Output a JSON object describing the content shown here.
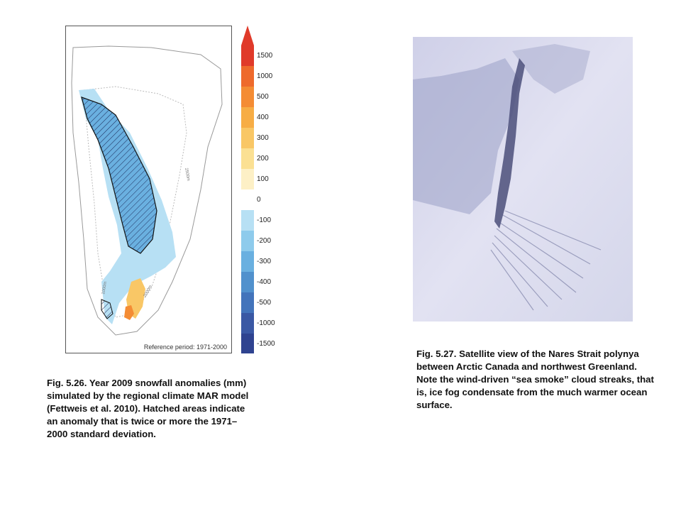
{
  "figure_526": {
    "caption": "Fig. 5.26. Year 2009 snowfall anomalies (mm) simulated by the regional climate MAR model (Fettweis et al. 2010). Hatched areas indicate an anomaly that is twice or more the 1971–2000 standard deviation.",
    "reference_label": "Reference period: 1971-2000",
    "contour_label_a": "2500m",
    "contour_label_b": "2000m",
    "contour_label_c": "1000m",
    "colorbar_ticks": [
      "1500",
      "1000",
      "500",
      "400",
      "300",
      "200",
      "100",
      "0",
      "-100",
      "-200",
      "-300",
      "-400",
      "-500",
      "-1000",
      "-1500"
    ],
    "colors": {
      "positive": [
        "#e03a2a",
        "#ee6a2c",
        "#f48c34",
        "#f7ad45",
        "#f9c766",
        "#fbe093",
        "#fdf0c6"
      ],
      "neutral": "#ffffff",
      "negative": [
        "#b7e0f4",
        "#8ecbec",
        "#6ab0e0",
        "#5191cd",
        "#4374bb",
        "#3a58a4",
        "#2f4390"
      ]
    }
  },
  "figure_527": {
    "caption": "Fig. 5.27. Satellite view of the Nares Strait polynya between Arctic Canada and northwest Greenland. Note the wind-driven “sea smoke” cloud streaks, that is, ice fog condensate from the much warmer ocean surface."
  }
}
